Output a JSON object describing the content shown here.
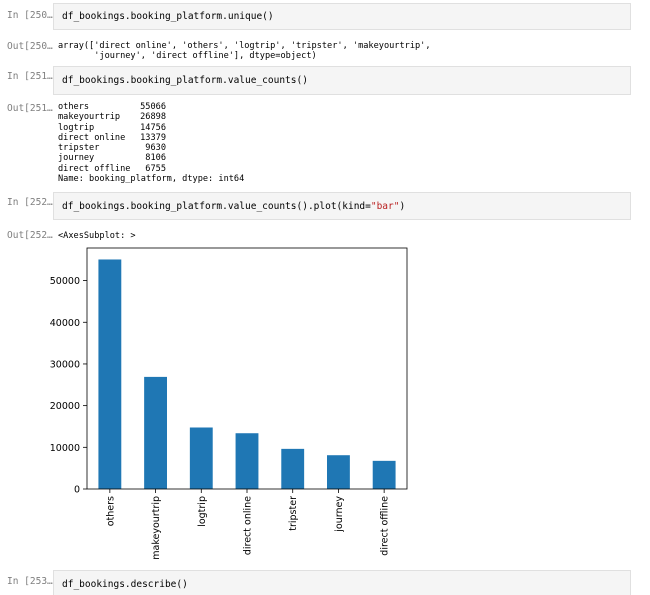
{
  "cells": [
    {
      "in_prompt": "In [250…",
      "code": "df_bookings.booking_platform.unique()",
      "out_prompt": "Out[250…",
      "output_lines": [
        "array(['direct online', 'others', 'logtrip', 'tripster', 'makeyourtrip',",
        "       'journey', 'direct offline'], dtype=object)"
      ]
    },
    {
      "in_prompt": "In [251…",
      "code": "df_bookings.booking_platform.value_counts()",
      "out_prompt": "Out[251…",
      "value_counts": [
        {
          "name": "others",
          "value": "55066"
        },
        {
          "name": "makeyourtrip",
          "value": "26898"
        },
        {
          "name": "logtrip",
          "value": "14756"
        },
        {
          "name": "direct online",
          "value": "13379"
        },
        {
          "name": "tripster",
          "value": "9630"
        },
        {
          "name": "journey",
          "value": "8106"
        },
        {
          "name": "direct offline",
          "value": "6755"
        }
      ],
      "footer": "Name: booking_platform, dtype: int64"
    },
    {
      "in_prompt": "In [252…",
      "code_prefix": "df_bookings.booking_platform.value_counts().plot(kind=",
      "code_string": "\"bar\"",
      "code_suffix": ")",
      "out_prompt": "Out[252…",
      "output_text": "<AxesSubplot: >"
    },
    {
      "in_prompt": "In [253…",
      "code": "df_bookings.describe()"
    }
  ],
  "colors": {
    "bar": "#1f77b4",
    "cell_bg": "#f5f5f5",
    "prompt": "#7f7f7f",
    "string": "#ba2121",
    "paren": "#0055aa"
  },
  "chart_data": {
    "type": "bar",
    "categories": [
      "others",
      "makeyourtrip",
      "logtrip",
      "direct online",
      "tripster",
      "journey",
      "direct offline"
    ],
    "values": [
      55066,
      26898,
      14756,
      13379,
      9630,
      8106,
      6755
    ],
    "title": "",
    "xlabel": "",
    "ylabel": "",
    "ylim": [
      0,
      57820
    ],
    "yticks": [
      "0",
      "10000",
      "20000",
      "30000",
      "40000",
      "50000"
    ],
    "grid": false,
    "legend": "none"
  }
}
